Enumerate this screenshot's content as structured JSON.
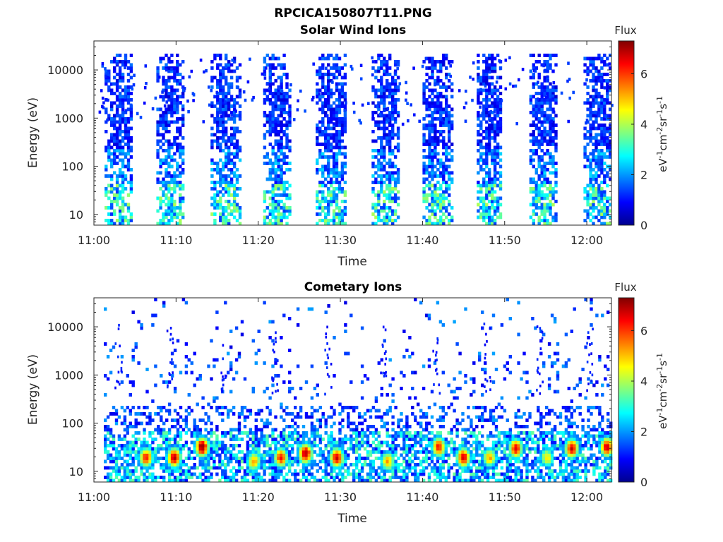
{
  "figure_title": "RPCICA150807T11.PNG",
  "chart_data": [
    {
      "type": "heatmap",
      "title": "Solar Wind Ions",
      "xlabel": "Time",
      "ylabel": "Energy (eV)",
      "x_tick_labels": [
        "11:00",
        "11:10",
        "11:20",
        "11:30",
        "11:40",
        "11:50",
        "12:00"
      ],
      "x_range_minutes": [
        0,
        63
      ],
      "y_scale": "log",
      "y_tick_labels": [
        "10",
        "100",
        "1000",
        "10000"
      ],
      "y_ticks": [
        10,
        100,
        1000,
        10000
      ],
      "y_range": [
        6,
        40000
      ],
      "colorbar": {
        "label": "Flux",
        "unit_label": "eV-1cm-2sr-1s-1",
        "ticks": [
          0,
          2,
          4,
          6
        ],
        "range": [
          0,
          7.3
        ],
        "colormap": "jet"
      },
      "bursts": [
        {
          "start_min": 1.3,
          "end_min": 4.6,
          "emin": 6,
          "emax": 20000,
          "density": 0.7
        },
        {
          "start_min": 7.6,
          "end_min": 10.8,
          "emin": 6,
          "emax": 20000,
          "density": 0.7
        },
        {
          "start_min": 14.2,
          "end_min": 17.6,
          "emin": 6,
          "emax": 20000,
          "density": 0.75
        },
        {
          "start_min": 20.6,
          "end_min": 23.8,
          "emin": 6,
          "emax": 20000,
          "density": 0.75
        },
        {
          "start_min": 27.0,
          "end_min": 30.6,
          "emin": 6,
          "emax": 20000,
          "density": 0.75
        },
        {
          "start_min": 33.8,
          "end_min": 37.2,
          "emin": 6,
          "emax": 20000,
          "density": 0.75
        },
        {
          "start_min": 40.0,
          "end_min": 43.6,
          "emin": 6,
          "emax": 20000,
          "density": 0.75
        },
        {
          "start_min": 46.6,
          "end_min": 49.6,
          "emin": 6,
          "emax": 20000,
          "density": 0.75
        },
        {
          "start_min": 53.0,
          "end_min": 56.4,
          "emin": 6,
          "emax": 20000,
          "density": 0.75
        },
        {
          "start_min": 59.6,
          "end_min": 63.0,
          "emin": 6,
          "emax": 20000,
          "density": 0.75
        }
      ]
    },
    {
      "type": "heatmap",
      "title": "Cometary Ions",
      "xlabel": "Time",
      "ylabel": "Energy (eV)",
      "x_tick_labels": [
        "11:00",
        "11:10",
        "11:20",
        "11:30",
        "11:40",
        "11:50",
        "12:00"
      ],
      "x_range_minutes": [
        0,
        63
      ],
      "y_scale": "log",
      "y_tick_labels": [
        "10",
        "100",
        "1000",
        "10000"
      ],
      "y_ticks": [
        10,
        100,
        1000,
        10000
      ],
      "y_range": [
        6,
        40000
      ],
      "colorbar": {
        "label": "Flux",
        "unit_label": "eV-1cm-2sr-1s-1",
        "ticks": [
          0,
          2,
          4,
          6
        ],
        "range": [
          0,
          7.3
        ],
        "colormap": "jet"
      },
      "hot_spots": [
        {
          "t_min": 6.2,
          "energy": 18,
          "peak": 6.0
        },
        {
          "t_min": 9.6,
          "energy": 18,
          "peak": 6.8
        },
        {
          "t_min": 13.0,
          "energy": 30,
          "peak": 7.0
        },
        {
          "t_min": 19.3,
          "energy": 15,
          "peak": 5.0
        },
        {
          "t_min": 22.6,
          "energy": 18,
          "peak": 6.0
        },
        {
          "t_min": 25.6,
          "energy": 22,
          "peak": 6.8
        },
        {
          "t_min": 29.4,
          "energy": 18,
          "peak": 6.5
        },
        {
          "t_min": 35.6,
          "energy": 15,
          "peak": 5.0
        },
        {
          "t_min": 41.8,
          "energy": 30,
          "peak": 6.0
        },
        {
          "t_min": 44.8,
          "energy": 18,
          "peak": 6.5
        },
        {
          "t_min": 48.0,
          "energy": 18,
          "peak": 5.0
        },
        {
          "t_min": 51.2,
          "energy": 28,
          "peak": 6.2
        },
        {
          "t_min": 55.0,
          "energy": 18,
          "peak": 4.5
        },
        {
          "t_min": 58.0,
          "energy": 28,
          "peak": 6.5
        },
        {
          "t_min": 62.3,
          "energy": 30,
          "peak": 6.5
        }
      ]
    }
  ]
}
